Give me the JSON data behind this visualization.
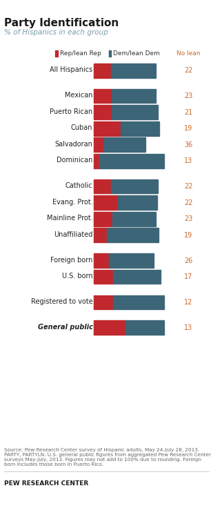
{
  "title": "Party Identification",
  "subtitle": "% of Hispanics in each group",
  "rep_color": "#C0282D",
  "dem_color": "#3D6578",
  "no_lean_color": "#C8692A",
  "background_color": "#FFFFFF",
  "categories": [
    "All Hispanics",
    "Mexican",
    "Puerto Rican",
    "Cuban",
    "Salvadoran",
    "Dominican",
    "Catholic",
    "Evang. Prot.",
    "Mainline Prot.",
    "Unaffiliated",
    "Foreign born",
    "U.S. born",
    "Registered to vote",
    "General public"
  ],
  "rep_values": [
    21,
    22,
    22,
    33,
    12,
    7,
    21,
    30,
    23,
    16,
    19,
    24,
    24,
    39
  ],
  "dem_values": [
    56,
    55,
    57,
    48,
    52,
    80,
    58,
    48,
    54,
    64,
    55,
    59,
    63,
    48
  ],
  "no_lean_values": [
    22,
    23,
    21,
    19,
    36,
    13,
    22,
    22,
    23,
    19,
    26,
    17,
    12,
    13
  ],
  "bold_rows": [
    13
  ],
  "legend_rep": "Rep/lean Rep",
  "legend_dem": "Dem/lean Dem",
  "legend_nolean": "No lean",
  "source_text": "Source: Pew Research Center survey of Hispanic adults, May 24-July 28, 2013. PARTY, PARTYLN. U.S. general public figures from aggregated Pew Research Center surveys May-July, 2013. Figures may not add to 100% due to rounding. Foreign born includes those born in Puerto Rico.",
  "footer": "PEW RESEARCH CENTER"
}
